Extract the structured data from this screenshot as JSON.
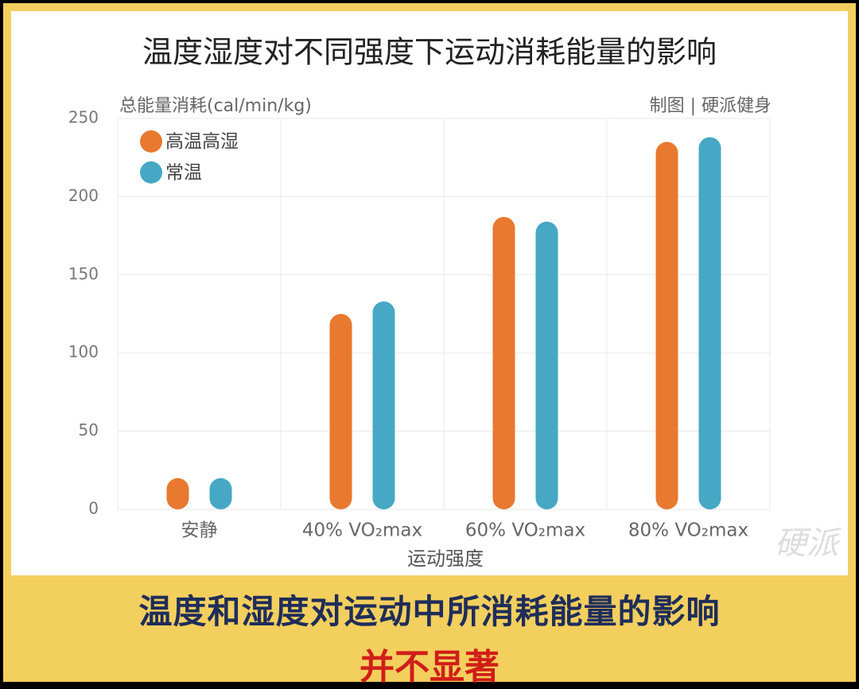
{
  "chart_data": {
    "type": "bar",
    "title": "温度湿度对不同强度下运动消耗能量的影响",
    "y_label": "总能量消耗(cal/min/kg)",
    "x_label": "运动强度",
    "source": "制图 | 硬派健身",
    "watermark": "硬派",
    "categories": [
      "安静",
      "40% VO₂max",
      "60% VO₂max",
      "80% VO₂max"
    ],
    "series": [
      {
        "name": "高温高湿",
        "color": "#e8792f",
        "values": [
          20,
          125,
          187,
          235
        ]
      },
      {
        "name": "常温",
        "color": "#46a8c4",
        "values": [
          20,
          133,
          184,
          238
        ]
      }
    ],
    "ylim": [
      0,
      250
    ],
    "yticks": [
      0,
      50,
      100,
      150,
      200,
      250
    ],
    "grid": true,
    "legend": "upper left"
  },
  "caption": [
    "温度和湿度对运动中所消耗能量的影响",
    "并不显著"
  ]
}
